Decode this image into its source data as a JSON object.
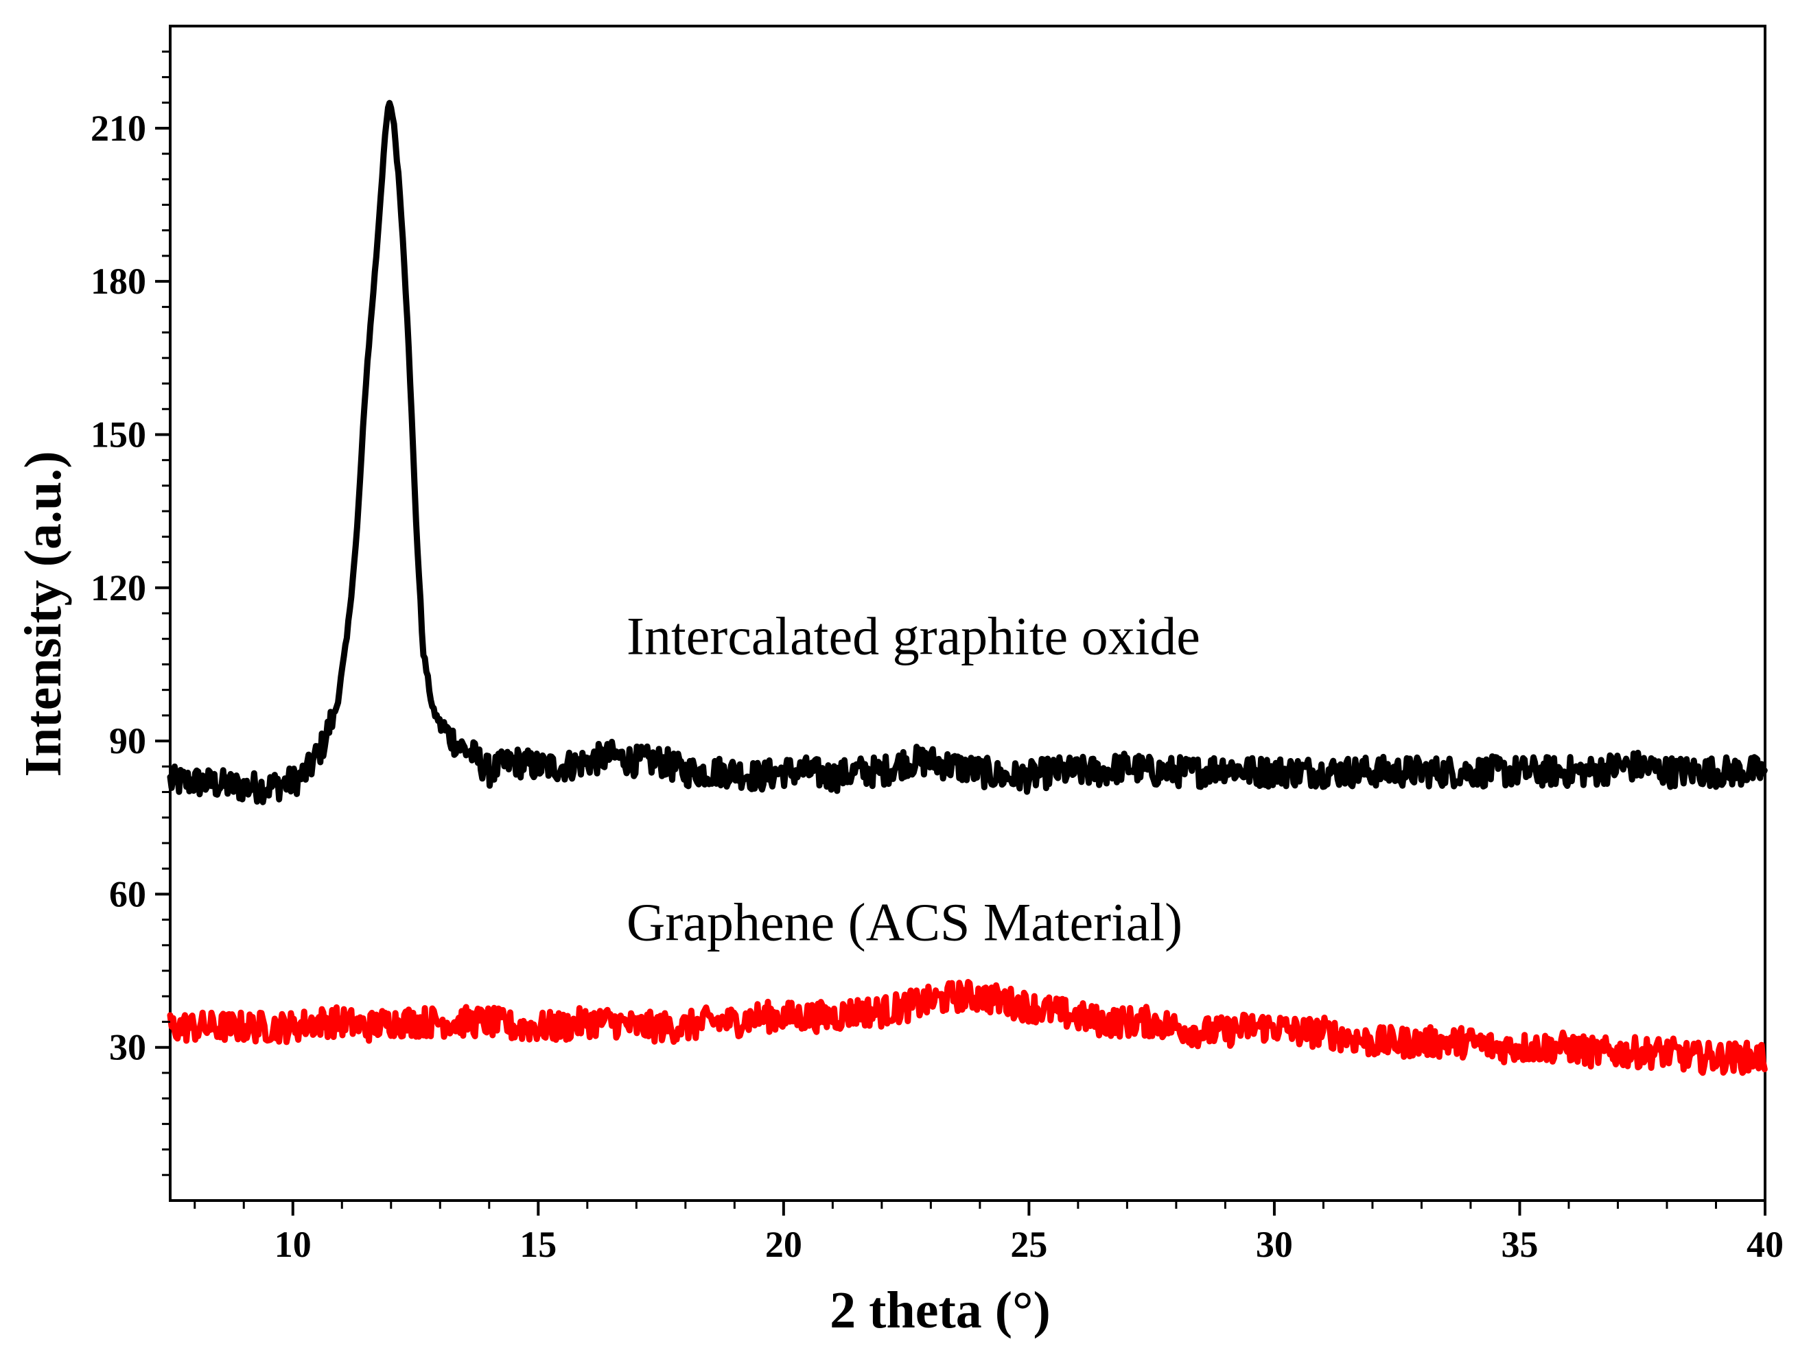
{
  "chart_data": {
    "type": "line",
    "title": "",
    "xlabel": "2 theta (°)",
    "ylabel": "Intensity (a.u.)",
    "xlim": [
      7.5,
      40
    ],
    "ylim": [
      0,
      230
    ],
    "x_ticks": [
      10,
      15,
      20,
      25,
      30,
      35,
      40
    ],
    "y_ticks": [
      30,
      60,
      90,
      120,
      150,
      180,
      210
    ],
    "grid": false,
    "legend": "none",
    "annotations": [
      {
        "text": "Intercalated graphite oxide",
        "x": 16.8,
        "y": 107
      },
      {
        "text": "Graphene (ACS Material)",
        "x": 16.8,
        "y": 51
      }
    ],
    "series": [
      {
        "name": "Intercalated graphite oxide",
        "color": "#000000",
        "points": [
          [
            7.5,
            82
          ],
          [
            8,
            82
          ],
          [
            8.5,
            81.5
          ],
          [
            9,
            81
          ],
          [
            9.5,
            81
          ],
          [
            10,
            82
          ],
          [
            10.3,
            84
          ],
          [
            10.6,
            89
          ],
          [
            10.9,
            97
          ],
          [
            11.1,
            110
          ],
          [
            11.3,
            130
          ],
          [
            11.5,
            162
          ],
          [
            11.7,
            185
          ],
          [
            11.85,
            205
          ],
          [
            11.95,
            215
          ],
          [
            12.05,
            212
          ],
          [
            12.2,
            195
          ],
          [
            12.35,
            170
          ],
          [
            12.5,
            135
          ],
          [
            12.65,
            108
          ],
          [
            12.85,
            96
          ],
          [
            13.1,
            92
          ],
          [
            13.4,
            89
          ],
          [
            13.7,
            87
          ],
          [
            14,
            84
          ],
          [
            14.5,
            86
          ],
          [
            15,
            85
          ],
          [
            15.5,
            85
          ],
          [
            16,
            86
          ],
          [
            16.5,
            87
          ],
          [
            17,
            86
          ],
          [
            17.5,
            86
          ],
          [
            18,
            84
          ],
          [
            18.5,
            84
          ],
          [
            19,
            84
          ],
          [
            19.5,
            83
          ],
          [
            20,
            84
          ],
          [
            20.5,
            84
          ],
          [
            21,
            83
          ],
          [
            21.5,
            84
          ],
          [
            22,
            84
          ],
          [
            22.5,
            86
          ],
          [
            23,
            86
          ],
          [
            23.5,
            85
          ],
          [
            24,
            84
          ],
          [
            24.5,
            83
          ],
          [
            25,
            83
          ],
          [
            25.5,
            84
          ],
          [
            26,
            84
          ],
          [
            26.5,
            84
          ],
          [
            27,
            85
          ],
          [
            27.5,
            84
          ],
          [
            28,
            84
          ],
          [
            28.5,
            84
          ],
          [
            29,
            85
          ],
          [
            29.5,
            84
          ],
          [
            30,
            84
          ],
          [
            30.5,
            84
          ],
          [
            31,
            84
          ],
          [
            31.5,
            84
          ],
          [
            32,
            84
          ],
          [
            32.5,
            84
          ],
          [
            33,
            84
          ],
          [
            33.5,
            84
          ],
          [
            34,
            84
          ],
          [
            34.5,
            84
          ],
          [
            35,
            84
          ],
          [
            35.5,
            84
          ],
          [
            36,
            84
          ],
          [
            36.5,
            84
          ],
          [
            37,
            85
          ],
          [
            37.5,
            85
          ],
          [
            38,
            84
          ],
          [
            38.5,
            84
          ],
          [
            39,
            84
          ],
          [
            39.5,
            84
          ],
          [
            40,
            84
          ]
        ]
      },
      {
        "name": "Graphene (ACS Material)",
        "color": "#ff0000",
        "points": [
          [
            7.5,
            34
          ],
          [
            8,
            34
          ],
          [
            8.5,
            34
          ],
          [
            9,
            34
          ],
          [
            9.5,
            34
          ],
          [
            10,
            34
          ],
          [
            10.5,
            35
          ],
          [
            11,
            35
          ],
          [
            11.5,
            34
          ],
          [
            12,
            35
          ],
          [
            12.5,
            35
          ],
          [
            13,
            35
          ],
          [
            13.5,
            35
          ],
          [
            14,
            35
          ],
          [
            14.5,
            34
          ],
          [
            15,
            34
          ],
          [
            15.5,
            34
          ],
          [
            16,
            35
          ],
          [
            16.5,
            35
          ],
          [
            17,
            34
          ],
          [
            17.5,
            34
          ],
          [
            18,
            34
          ],
          [
            18.5,
            35
          ],
          [
            19,
            35
          ],
          [
            19.5,
            36
          ],
          [
            20,
            36
          ],
          [
            20.5,
            36
          ],
          [
            21,
            36
          ],
          [
            21.5,
            37
          ],
          [
            22,
            37
          ],
          [
            22.5,
            38
          ],
          [
            23,
            39
          ],
          [
            23.5,
            40
          ],
          [
            24,
            40
          ],
          [
            24.5,
            39
          ],
          [
            25,
            38
          ],
          [
            25.5,
            37
          ],
          [
            26,
            36
          ],
          [
            26.5,
            35
          ],
          [
            27,
            35
          ],
          [
            27.5,
            35
          ],
          [
            28,
            34
          ],
          [
            28.5,
            33
          ],
          [
            29,
            33
          ],
          [
            29.5,
            34
          ],
          [
            30,
            34
          ],
          [
            30.5,
            33
          ],
          [
            31,
            33
          ],
          [
            31.5,
            32
          ],
          [
            32,
            31
          ],
          [
            32.5,
            31
          ],
          [
            33,
            31
          ],
          [
            33.5,
            31
          ],
          [
            34,
            31
          ],
          [
            34.5,
            30
          ],
          [
            35,
            30
          ],
          [
            35.5,
            30
          ],
          [
            36,
            30
          ],
          [
            36.5,
            29
          ],
          [
            37,
            29
          ],
          [
            37.5,
            29
          ],
          [
            38,
            29
          ],
          [
            38.5,
            28
          ],
          [
            39,
            28
          ],
          [
            39.5,
            28
          ],
          [
            40,
            28
          ]
        ]
      }
    ]
  }
}
